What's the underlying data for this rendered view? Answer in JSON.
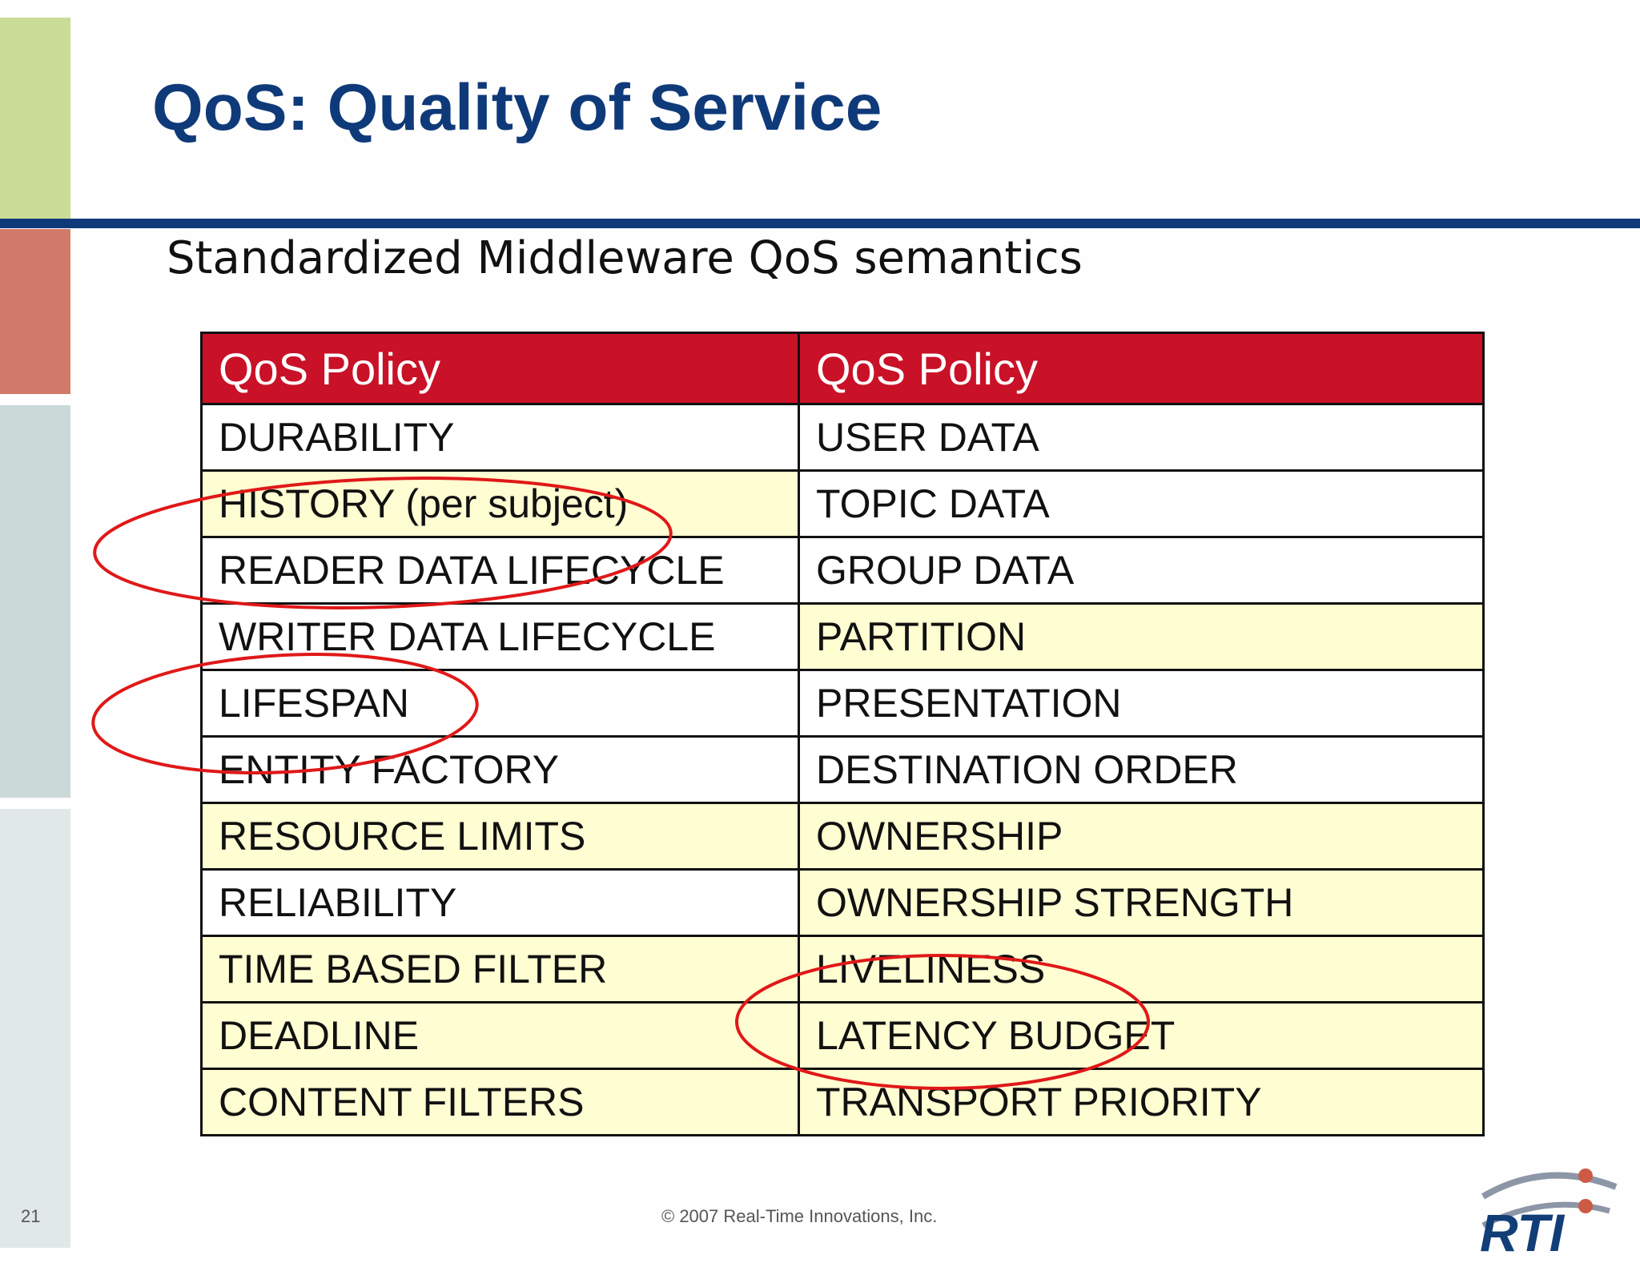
{
  "slide": {
    "title": "QoS:  Quality of Service",
    "subtitle": "Standardized Middleware QoS semantics",
    "page_number": "21",
    "copyright": "© 2007 Real-Time Innovations, Inc.",
    "logo_text": "RTI",
    "colors": {
      "title": "#0f3a7a",
      "header_bg": "#c91127",
      "highlight_row": "#fffdd2",
      "circle": "#e01818"
    }
  },
  "table": {
    "headers": [
      "QoS Policy",
      "QoS Policy"
    ],
    "rows": [
      {
        "left": "DURABILITY",
        "right": "USER DATA",
        "left_hl": false,
        "right_hl": false
      },
      {
        "left": "HISTORY (per subject)",
        "right": "TOPIC DATA",
        "left_hl": true,
        "right_hl": false
      },
      {
        "left": "READER DATA LIFECYCLE",
        "right": "GROUP DATA",
        "left_hl": false,
        "right_hl": false
      },
      {
        "left": "WRITER DATA LIFECYCLE",
        "right": "PARTITION",
        "left_hl": false,
        "right_hl": true
      },
      {
        "left": "LIFESPAN",
        "right": "PRESENTATION",
        "left_hl": false,
        "right_hl": false
      },
      {
        "left": "ENTITY FACTORY",
        "right": "DESTINATION ORDER",
        "left_hl": false,
        "right_hl": false
      },
      {
        "left": "RESOURCE LIMITS",
        "right": "OWNERSHIP",
        "left_hl": true,
        "right_hl": true
      },
      {
        "left": "RELIABILITY",
        "right": "OWNERSHIP STRENGTH",
        "left_hl": false,
        "right_hl": true
      },
      {
        "left": "TIME BASED FILTER",
        "right": "LIVELINESS",
        "left_hl": true,
        "right_hl": true
      },
      {
        "left": "DEADLINE",
        "right": "LATENCY BUDGET",
        "left_hl": true,
        "right_hl": true
      },
      {
        "left": "CONTENT FILTERS",
        "right": "TRANSPORT PRIORITY",
        "left_hl": true,
        "right_hl": true
      }
    ]
  }
}
